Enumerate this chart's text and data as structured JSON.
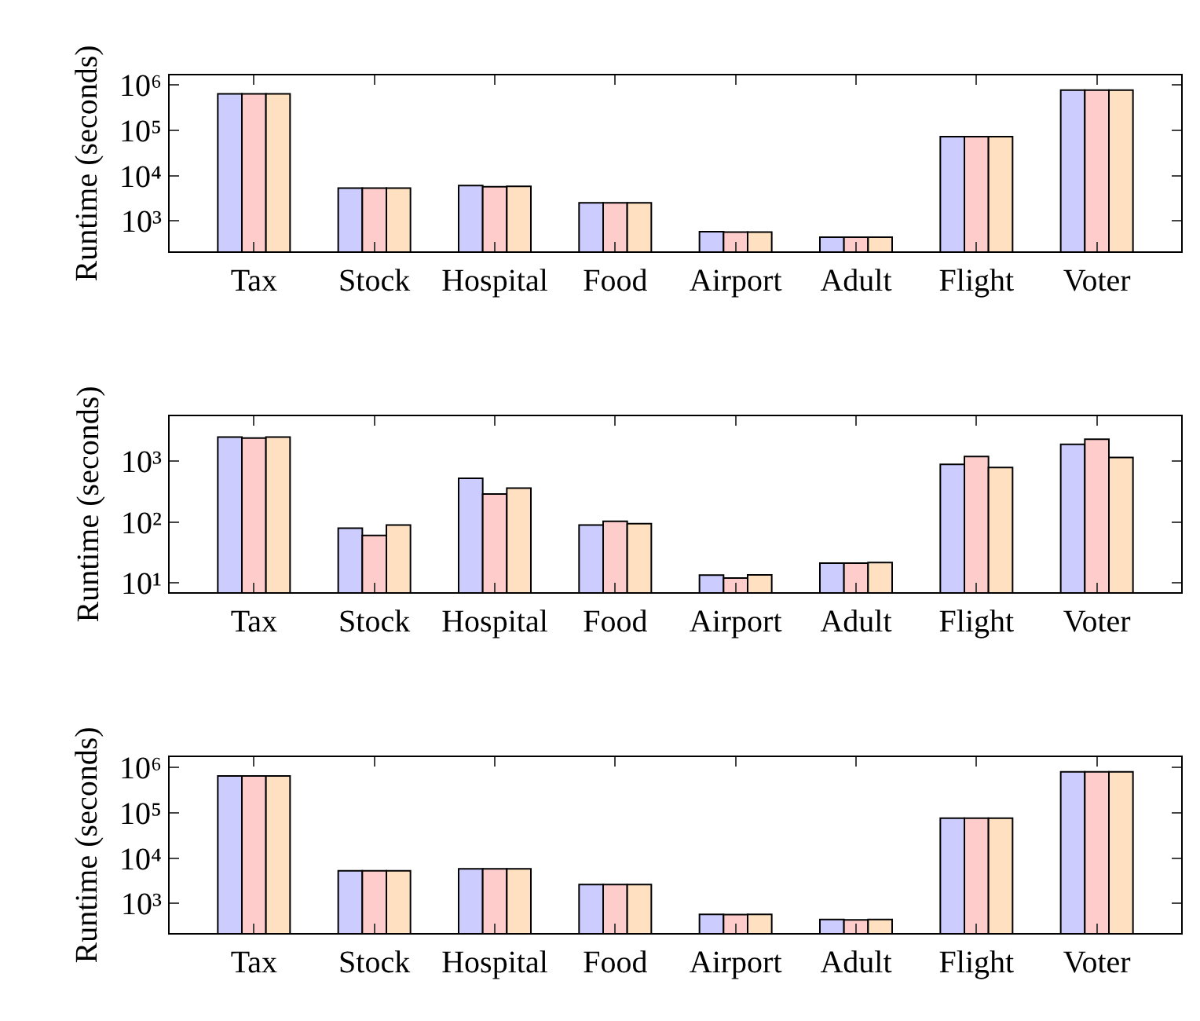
{
  "chart_data": [
    {
      "type": "bar",
      "ylabel": "Runtime (seconds)",
      "categories": [
        "Tax",
        "Stock",
        "Hospital",
        "Food",
        "Airport",
        "Adult",
        "Flight",
        "Voter"
      ],
      "log": true,
      "ylim": [
        215,
        1600000
      ],
      "yticks": [
        {
          "value": 1000,
          "label": "10³"
        },
        {
          "value": 10000,
          "label": "10⁴"
        },
        {
          "value": 100000,
          "label": "10⁵"
        },
        {
          "value": 1000000,
          "label": "10⁶"
        }
      ],
      "series": [
        {
          "color": "#ccccff",
          "values": [
            630000,
            5300,
            6000,
            2500,
            580,
            440,
            72000,
            760000
          ]
        },
        {
          "color": "#ffcccc",
          "values": [
            630000,
            5300,
            5700,
            2500,
            570,
            440,
            72000,
            760000
          ]
        },
        {
          "color": "#ffe0c0",
          "values": [
            630000,
            5300,
            5800,
            2500,
            570,
            440,
            72000,
            760000
          ]
        }
      ]
    },
    {
      "type": "bar",
      "ylabel": "Runtime (seconds)",
      "categories": [
        "Tax",
        "Stock",
        "Hospital",
        "Food",
        "Airport",
        "Adult",
        "Flight",
        "Voter"
      ],
      "log": true,
      "ylim": [
        7,
        5500
      ],
      "yticks": [
        {
          "value": 10,
          "label": "10¹"
        },
        {
          "value": 100,
          "label": "10²"
        },
        {
          "value": 1000,
          "label": "10³"
        }
      ],
      "series": [
        {
          "color": "#ccccff",
          "values": [
            2500,
            79,
            525,
            89,
            13.4,
            21,
            890,
            1900
          ]
        },
        {
          "color": "#ffcccc",
          "values": [
            2400,
            60,
            290,
            103,
            12,
            21,
            1200,
            2300
          ]
        },
        {
          "color": "#ffe0c0",
          "values": [
            2500,
            89,
            360,
            94,
            13.5,
            21.5,
            790,
            1150
          ]
        }
      ]
    },
    {
      "type": "bar",
      "ylabel": "Runtime (seconds)",
      "categories": [
        "Tax",
        "Stock",
        "Hospital",
        "Food",
        "Airport",
        "Adult",
        "Flight",
        "Voter"
      ],
      "log": true,
      "ylim": [
        220,
        1700000
      ],
      "yticks": [
        {
          "value": 1000,
          "label": "10³"
        },
        {
          "value": 10000,
          "label": "10⁴"
        },
        {
          "value": 100000,
          "label": "10⁵"
        },
        {
          "value": 1000000,
          "label": "10⁶"
        }
      ],
      "series": [
        {
          "color": "#ccccff",
          "values": [
            650000,
            5200,
            5800,
            2600,
            570,
            440,
            76000,
            800000
          ]
        },
        {
          "color": "#ffcccc",
          "values": [
            650000,
            5200,
            5800,
            2600,
            560,
            430,
            76000,
            800000
          ]
        },
        {
          "color": "#ffe0c0",
          "values": [
            650000,
            5200,
            5800,
            2600,
            570,
            440,
            76000,
            800000
          ]
        }
      ]
    }
  ]
}
